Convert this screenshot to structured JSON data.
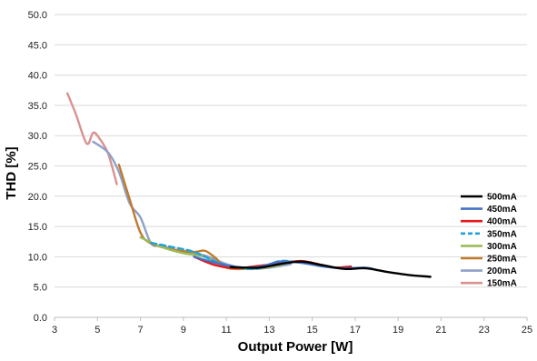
{
  "chart_data": {
    "type": "line",
    "title": "",
    "xlabel": "Output Power [W]",
    "ylabel": "THD [%]",
    "xlim": [
      3,
      25
    ],
    "ylim": [
      0,
      50
    ],
    "xticks": [
      3,
      5,
      7,
      9,
      11,
      13,
      15,
      17,
      19,
      21,
      23,
      25
    ],
    "yticks": [
      0,
      5,
      10,
      15,
      20,
      25,
      30,
      35,
      40,
      45,
      50
    ],
    "ytick_labels": [
      "0.0",
      "5.0",
      "10.0",
      "15.0",
      "20.0",
      "25.0",
      "30.0",
      "35.0",
      "40.0",
      "45.0",
      "50.0"
    ],
    "grid": "horizontal",
    "legend_position": "right",
    "series": [
      {
        "name": "500mA",
        "color": "#000000",
        "dash": "solid",
        "x": [
          11.2,
          12.5,
          13.5,
          14.5,
          15.5,
          16.5,
          17.5,
          18.5,
          19.5,
          20.5
        ],
        "y": [
          8.3,
          8.2,
          8.8,
          9.2,
          8.6,
          8.0,
          8.1,
          7.5,
          7.0,
          6.7
        ]
      },
      {
        "name": "450mA",
        "color": "#4472C4",
        "dash": "solid",
        "x": [
          9.5,
          10.5,
          11.5,
          12.5,
          13.5,
          14.5,
          15.5,
          16.5,
          17.5,
          18.0
        ],
        "y": [
          10.0,
          9.0,
          8.3,
          8.3,
          9.2,
          9.0,
          8.4,
          8.1,
          8.2,
          7.8
        ]
      },
      {
        "name": "400mA",
        "color": "#E41A1C",
        "dash": "solid",
        "x": [
          9.5,
          10.5,
          11.5,
          12.5,
          13.5,
          14.5,
          15.5,
          16.0,
          16.8
        ],
        "y": [
          10.0,
          8.6,
          8.1,
          8.5,
          8.9,
          9.3,
          8.6,
          8.2,
          8.4
        ]
      },
      {
        "name": "350mA",
        "color": "#1FA2D8",
        "dash": "dashed",
        "x": [
          7.5,
          8.5,
          9.5,
          10.5,
          11.5,
          12.5,
          13.5,
          14.5,
          15.5
        ],
        "y": [
          12.3,
          11.6,
          10.8,
          9.2,
          8.2,
          8.1,
          9.3,
          9.0,
          8.5
        ]
      },
      {
        "name": "300mA",
        "color": "#9BBB59",
        "dash": "solid",
        "x": [
          7.0,
          8.0,
          9.0,
          10.0,
          11.0,
          12.0,
          13.0,
          14.0
        ],
        "y": [
          13.2,
          11.6,
          10.6,
          10.0,
          8.3,
          8.0,
          8.3,
          9.1
        ]
      },
      {
        "name": "250mA",
        "color": "#C07A2C",
        "dash": "solid",
        "x": [
          6.0,
          6.5,
          7.0,
          7.5,
          8.5,
          9.5,
          10.0,
          10.5,
          11.0,
          12.0,
          13.0
        ],
        "y": [
          25.2,
          19.5,
          14.0,
          12.2,
          11.2,
          10.8,
          11.0,
          9.8,
          8.2,
          8.0,
          8.5
        ]
      },
      {
        "name": "200mA",
        "color": "#8EA1C8",
        "dash": "solid",
        "x": [
          4.8,
          5.5,
          6.0,
          6.5,
          7.0,
          7.5,
          8.0,
          9.0,
          10.0,
          11.0,
          12.0,
          13.0,
          14.0
        ],
        "y": [
          29.0,
          27.2,
          24.0,
          18.8,
          16.5,
          12.2,
          11.8,
          10.8,
          10.2,
          8.8,
          8.0,
          8.2,
          8.8
        ]
      },
      {
        "name": "150mA",
        "color": "#D9928F",
        "dash": "solid",
        "x": [
          3.6,
          4.0,
          4.5,
          4.8,
          5.1,
          5.5,
          5.9
        ],
        "y": [
          37.0,
          33.5,
          28.7,
          30.5,
          29.5,
          27.0,
          22.0
        ]
      }
    ]
  }
}
